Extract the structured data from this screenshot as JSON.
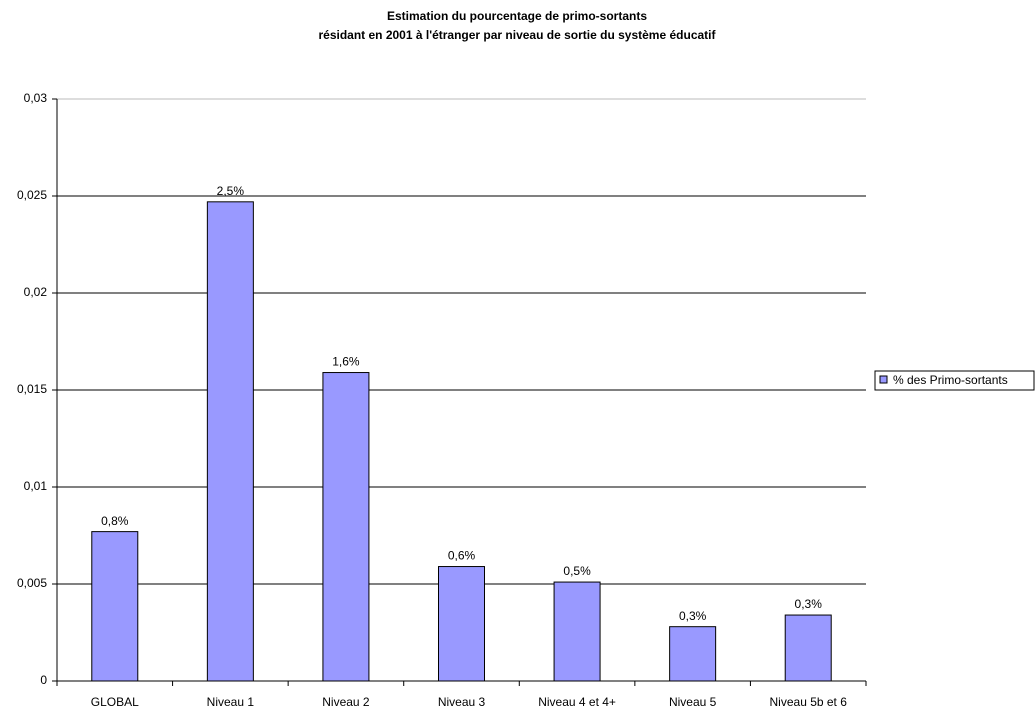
{
  "chart_data": {
    "type": "bar",
    "title": [
      "Estimation du pourcentage de primo-sortants",
      "résidant en 2001 à l'étranger par niveau de sortie du système éducatif"
    ],
    "categories": [
      "GLOBAL",
      "Niveau 1",
      "Niveau 2",
      "Niveau 3",
      "Niveau 4 et 4+",
      "Niveau 5",
      "Niveau 5b et 6"
    ],
    "series": [
      {
        "name": "% des Primo-sortants",
        "color": "#9999ff",
        "values": [
          0.0077,
          0.0247,
          0.0159,
          0.0059,
          0.0051,
          0.0028,
          0.0034
        ],
        "value_labels": [
          "0,8%",
          "2,5%",
          "1,6%",
          "0,6%",
          "0,5%",
          "0,3%",
          "0,3%"
        ]
      }
    ],
    "ylim": [
      0,
      0.03
    ],
    "yticks": [
      0,
      {
        "value": 0.005,
        "label": "0,005"
      },
      {
        "value": 0.01,
        "label": "0,01"
      },
      {
        "value": 0.015,
        "label": "0,015"
      },
      {
        "value": 0.02,
        "label": "0,02"
      },
      {
        "value": 0.025,
        "label": "0,025"
      },
      {
        "value": 0.03,
        "label": "0,03"
      }
    ],
    "grid": true,
    "legend": "right"
  }
}
